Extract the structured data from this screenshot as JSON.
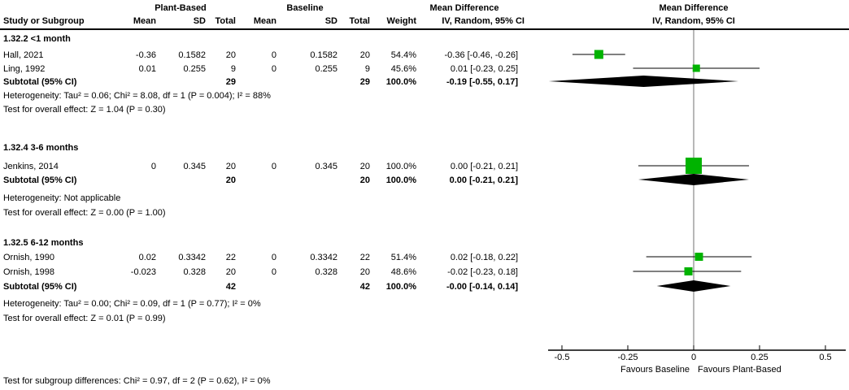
{
  "chart_data": {
    "type": "forest",
    "effect_measure": "Mean Difference",
    "columns": {
      "study": "Study or Subgroup",
      "group1": "Plant-Based",
      "group2": "Baseline",
      "mean": "Mean",
      "sd": "SD",
      "total": "Total",
      "weight": "Weight",
      "md_label": "Mean Difference",
      "ci_label": "IV, Random, 95% CI"
    },
    "groups": [
      {
        "label": "1.32.2 <1 month",
        "studies": [
          {
            "name": "Hall, 2021",
            "mean1": "-0.36",
            "sd1": "0.1582",
            "n1": "20",
            "mean2": "0",
            "sd2": "0.1582",
            "n2": "20",
            "weight": "54.4%",
            "weight_val": 54.4,
            "ci": "-0.36 [-0.46, -0.26]",
            "est": -0.36,
            "lo": -0.46,
            "hi": -0.26
          },
          {
            "name": "Ling, 1992",
            "mean1": "0.01",
            "sd1": "0.255",
            "n1": "9",
            "mean2": "0",
            "sd2": "0.255",
            "n2": "9",
            "weight": "45.6%",
            "weight_val": 45.6,
            "ci": "0.01 [-0.23, 0.25]",
            "est": 0.01,
            "lo": -0.23,
            "hi": 0.25
          }
        ],
        "subtotal": {
          "label": "Subtotal (95% CI)",
          "n1": "29",
          "n2": "29",
          "weight": "100.0%",
          "ci": "-0.19 [-0.55, 0.17]",
          "est": -0.19,
          "lo": -0.55,
          "hi": 0.17
        },
        "heterogeneity": "Heterogeneity: Tau² = 0.06; Chi² = 8.08, df = 1 (P = 0.004); I² = 88%",
        "overall_effect": "Test for overall effect: Z = 1.04 (P = 0.30)"
      },
      {
        "label": "1.32.4 3-6 months",
        "studies": [
          {
            "name": "Jenkins, 2014",
            "mean1": "0",
            "sd1": "0.345",
            "n1": "20",
            "mean2": "0",
            "sd2": "0.345",
            "n2": "20",
            "weight": "100.0%",
            "weight_val": 100,
            "ci": "0.00 [-0.21, 0.21]",
            "est": 0.0,
            "lo": -0.21,
            "hi": 0.21
          }
        ],
        "subtotal": {
          "label": "Subtotal (95% CI)",
          "n1": "20",
          "n2": "20",
          "weight": "100.0%",
          "ci": "0.00 [-0.21, 0.21]",
          "est": 0.0,
          "lo": -0.21,
          "hi": 0.21
        },
        "heterogeneity": "Heterogeneity: Not applicable",
        "overall_effect": "Test for overall effect: Z = 0.00 (P = 1.00)"
      },
      {
        "label": "1.32.5 6-12 months",
        "studies": [
          {
            "name": "Ornish, 1990",
            "mean1": "0.02",
            "sd1": "0.3342",
            "n1": "22",
            "mean2": "0",
            "sd2": "0.3342",
            "n2": "22",
            "weight": "51.4%",
            "weight_val": 51.4,
            "ci": "0.02 [-0.18, 0.22]",
            "est": 0.02,
            "lo": -0.18,
            "hi": 0.22
          },
          {
            "name": "Ornish, 1998",
            "mean1": "-0.023",
            "sd1": "0.328",
            "n1": "20",
            "mean2": "0",
            "sd2": "0.328",
            "n2": "20",
            "weight": "48.6%",
            "weight_val": 48.6,
            "ci": "-0.02 [-0.23, 0.18]",
            "est": -0.02,
            "lo": -0.23,
            "hi": 0.18
          }
        ],
        "subtotal": {
          "label": "Subtotal (95% CI)",
          "n1": "42",
          "n2": "42",
          "weight": "100.0%",
          "ci": "-0.00 [-0.14, 0.14]",
          "est": 0.0,
          "lo": -0.14,
          "hi": 0.14
        },
        "heterogeneity": "Heterogeneity: Tau² = 0.00; Chi² = 0.09, df = 1 (P = 0.77); I² = 0%",
        "overall_effect": "Test for overall effect: Z = 0.01 (P = 0.99)"
      }
    ],
    "axis": {
      "ticks": [
        -0.5,
        -0.25,
        0,
        0.25,
        0.5
      ],
      "tick_labels": [
        "-0.5",
        "-0.25",
        "0",
        "0.25",
        "0.5"
      ],
      "min": -0.55,
      "max": 0.58,
      "favours_left": "Favours Baseline",
      "favours_right": "Favours Plant-Based"
    },
    "footer": "Test for subgroup differences: Chi² = 0.97, df = 2 (P = 0.62), I² = 0%",
    "colors": {
      "marker": "#00b300",
      "diamond": "#000000",
      "zero_line": "#707070",
      "line": "#000000"
    }
  }
}
